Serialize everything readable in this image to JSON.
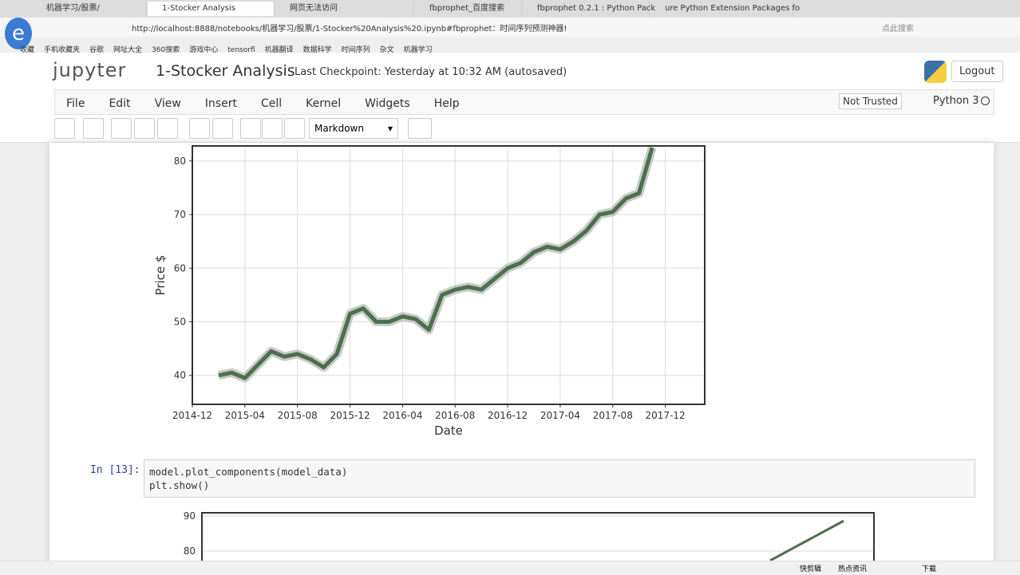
{
  "browser": {
    "tabs": [
      "机器学习/股票/",
      "1-Stocker Analysis",
      "网页无法访问",
      "fbprophet_百度搜索",
      "fbprophet 0.2.1 : Python Pack",
      "ure Python Extension Packages fo"
    ],
    "address": "http://localhost:8888/notebooks/机器学习/股票/1-Stocker%20Analysis%20.ipynb#fbprophet：时间序列预测神器!",
    "search": "点此搜索",
    "bookmarks": [
      "收藏",
      "手机收藏夹",
      "谷歌",
      "网址大全",
      "360搜索",
      "游戏中心",
      "tensorfl",
      "机器翻译",
      "数据科学",
      "时间序列",
      "杂文",
      "机器学习"
    ],
    "status": [
      "快剪辑",
      "热点资讯",
      "下载"
    ]
  },
  "jupyter": {
    "logo": "jupyter",
    "notebook_name": "1-Stocker Analysis",
    "checkpoint": "Last Checkpoint: Yesterday at 10:32 AM (autosaved)",
    "logout": "Logout",
    "menu": [
      "File",
      "Edit",
      "View",
      "Insert",
      "Cell",
      "Kernel",
      "Widgets",
      "Help"
    ],
    "trust": "Not Trusted",
    "kernel": "Python 3",
    "cell_type": "Markdown"
  },
  "cell": {
    "prompt": "In [13]:",
    "code": [
      "model.plot_components(model_data)",
      "plt.show()"
    ]
  },
  "chart_data": [
    {
      "type": "line",
      "color": "#4e6e50",
      "ylabel": "Price $",
      "xlabel": "Date",
      "x": [
        "2015-02",
        "2015-03",
        "2015-04",
        "2015-05",
        "2015-06",
        "2015-07",
        "2015-08",
        "2015-09",
        "2015-10",
        "2015-11",
        "2015-12",
        "2016-01",
        "2016-02",
        "2016-03",
        "2016-04",
        "2016-05",
        "2016-06",
        "2016-07",
        "2016-08",
        "2016-09",
        "2016-10",
        "2016-11",
        "2016-12",
        "2017-01",
        "2017-02",
        "2017-03",
        "2017-04",
        "2017-05",
        "2017-06",
        "2017-07",
        "2017-08",
        "2017-09",
        "2017-10",
        "2017-11"
      ],
      "values": [
        40,
        40.5,
        39.5,
        42,
        44.5,
        43.5,
        44,
        43,
        41.5,
        44,
        51.5,
        52.5,
        50,
        50,
        51,
        50.5,
        48.5,
        55,
        56,
        56.5,
        56,
        58,
        60,
        61,
        63,
        64,
        63.5,
        65,
        67,
        70,
        70.5,
        73,
        74,
        82.5
      ],
      "xlim": [
        "2014-12",
        "2018-03"
      ],
      "xticks": [
        "2014-12",
        "2015-04",
        "2015-08",
        "2015-12",
        "2016-04",
        "2016-08",
        "2016-12",
        "2017-04",
        "2017-08",
        "2017-12"
      ],
      "ylim": [
        34.6,
        82.8
      ],
      "yticks": [
        40,
        50,
        60,
        70,
        80
      ],
      "grid": true
    },
    {
      "type": "line",
      "color": "#4e6e50",
      "values": [
        77.3,
        88.6
      ],
      "ylim": [
        73.4,
        90.9
      ],
      "yticks": [
        80,
        90
      ],
      "grid": true
    }
  ]
}
